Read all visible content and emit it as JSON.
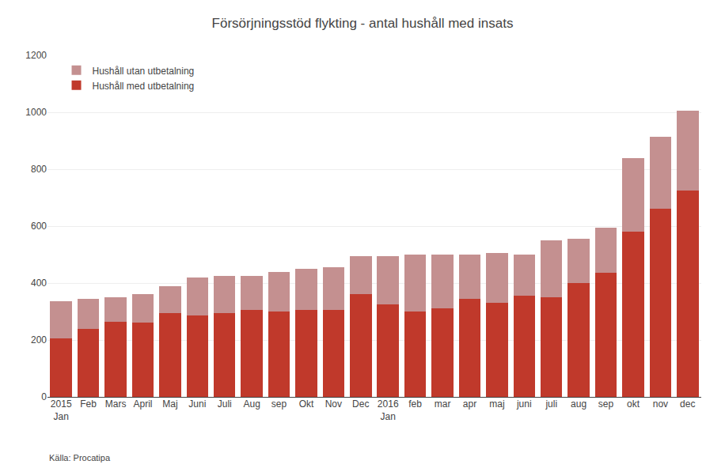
{
  "chart_data": {
    "type": "bar",
    "stacked": true,
    "title": "Försörjningsstöd flykting - antal hushåll med insats",
    "annotations": [
      "Källa: Procatipa"
    ],
    "categories": [
      "2015\nJan",
      "Feb",
      "Mars",
      "April",
      "Maj",
      "Juni",
      "Juli",
      "Aug",
      "sep",
      "Okt",
      "Nov",
      "Dec",
      "2016\nJan",
      "feb",
      "mar",
      "apr",
      "maj",
      "juni",
      "juli",
      "aug",
      "sep",
      "okt",
      "nov",
      "dec"
    ],
    "series": [
      {
        "name": "Hushåll med utbetalning",
        "color": "#c0392b",
        "values": [
          205,
          240,
          265,
          260,
          295,
          285,
          295,
          305,
          300,
          305,
          305,
          360,
          325,
          300,
          310,
          345,
          330,
          355,
          350,
          400,
          435,
          580,
          660,
          725
        ]
      },
      {
        "name": "Hushåll utan utbetalning",
        "color": "#c49090",
        "values": [
          130,
          105,
          85,
          100,
          95,
          135,
          130,
          120,
          140,
          145,
          150,
          135,
          170,
          200,
          190,
          155,
          175,
          145,
          200,
          155,
          160,
          260,
          255,
          280
        ]
      }
    ],
    "ylim": [
      0,
      1200
    ],
    "yticks": [
      0,
      200,
      400,
      600,
      800,
      1000,
      1200
    ],
    "grid": true,
    "legend": "upper left"
  }
}
